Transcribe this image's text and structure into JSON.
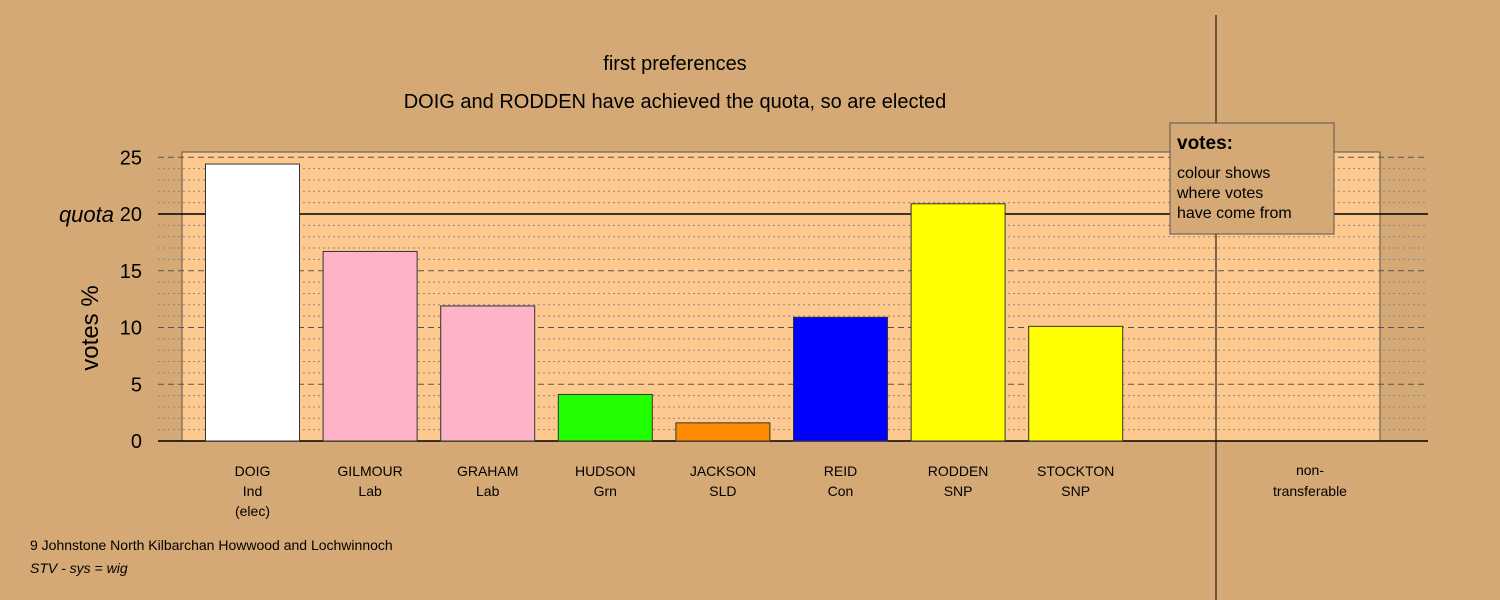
{
  "chart_data": {
    "type": "bar",
    "title": "first preferences",
    "subtitle": "DOIG and RODDEN have achieved the quota, so are elected",
    "ylabel": "votes %",
    "ylim": [
      0,
      25
    ],
    "yticks": [
      "0",
      "5",
      "10",
      "15",
      "20",
      "25"
    ],
    "quota": 20,
    "quota_label": "quota",
    "grid": true,
    "categories": [
      {
        "name": "DOIG",
        "party": "Ind",
        "note": "(elec)",
        "value": 24.4,
        "color": "#ffffff"
      },
      {
        "name": "GILMOUR",
        "party": "Lab",
        "note": "",
        "value": 16.7,
        "color": "#ffb3c6"
      },
      {
        "name": "GRAHAM",
        "party": "Lab",
        "note": "",
        "value": 11.9,
        "color": "#ffb3c6"
      },
      {
        "name": "HUDSON",
        "party": "Grn",
        "note": "",
        "value": 4.1,
        "color": "#22ff00"
      },
      {
        "name": "JACKSON",
        "party": "SLD",
        "note": "",
        "value": 1.6,
        "color": "#ff8c00"
      },
      {
        "name": "REID",
        "party": "Con",
        "note": "",
        "value": 10.9,
        "color": "#0000ff"
      },
      {
        "name": "RODDEN",
        "party": "SNP",
        "note": "",
        "value": 20.9,
        "color": "#ffff00"
      },
      {
        "name": "STOCKTON",
        "party": "SNP",
        "note": "",
        "value": 10.1,
        "color": "#ffff00"
      }
    ],
    "nontransferable": {
      "line1": "non-",
      "line2": "transferable",
      "value": 0
    },
    "legend": {
      "title": "votes:",
      "lines": [
        "colour shows",
        "where votes",
        "have come from"
      ],
      "placement": "top-right"
    },
    "footer": {
      "ward": "9 Johnstone North Kilbarchan Howwood and Lochwinnoch",
      "system": "STV - sys = wig"
    }
  },
  "colors": {
    "background": "#d5a975",
    "plot_area": "#fec98f"
  }
}
